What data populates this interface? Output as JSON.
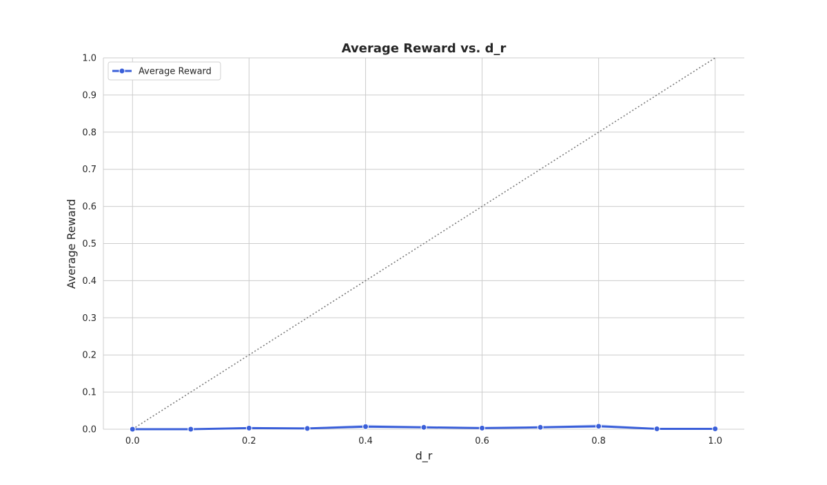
{
  "chart_data": {
    "type": "line",
    "title": "Average Reward vs. d_r",
    "xlabel": "d_r",
    "ylabel": "Average Reward",
    "xlim": [
      -0.05,
      1.05
    ],
    "ylim": [
      0.0,
      1.0
    ],
    "x_ticks": [
      "0.0",
      "0.2",
      "0.4",
      "0.6",
      "0.8",
      "1.0"
    ],
    "y_ticks": [
      "0.0",
      "0.1",
      "0.2",
      "0.3",
      "0.4",
      "0.5",
      "0.6",
      "0.7",
      "0.8",
      "0.9",
      "1.0"
    ],
    "grid": true,
    "legend": {
      "placement": "top-left",
      "entries": [
        "Average Reward"
      ]
    },
    "series": [
      {
        "name": "Average Reward",
        "color": "#3a5fd9",
        "band_color": "#9fb6f0",
        "x": [
          0.0,
          0.1,
          0.2,
          0.3,
          0.4,
          0.5,
          0.6,
          0.7,
          0.8,
          0.9,
          1.0
        ],
        "y": [
          0.0,
          0.0,
          0.003,
          0.002,
          0.007,
          0.005,
          0.003,
          0.005,
          0.008,
          0.001,
          0.001
        ],
        "y_lower": [
          0.0,
          0.0,
          0.001,
          0.0,
          0.003,
          0.002,
          0.001,
          0.002,
          0.004,
          0.0,
          0.0
        ],
        "y_upper": [
          0.001,
          0.001,
          0.006,
          0.004,
          0.012,
          0.008,
          0.006,
          0.008,
          0.013,
          0.003,
          0.003
        ]
      }
    ],
    "reference_line": {
      "style": "dotted",
      "color": "#777777",
      "x": [
        0.0,
        1.0
      ],
      "y": [
        0.0,
        1.0
      ]
    }
  }
}
